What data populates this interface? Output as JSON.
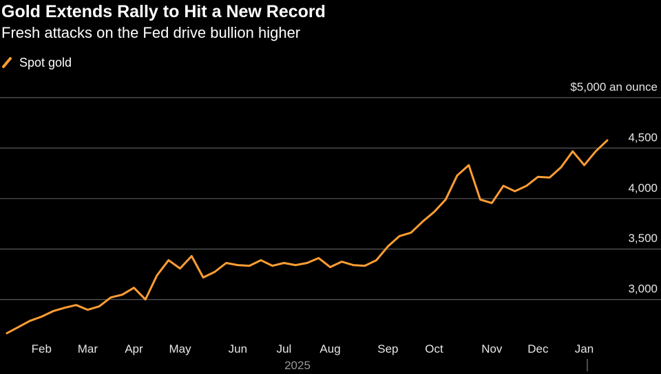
{
  "chart_data": {
    "type": "line",
    "title": "Gold Extends Rally to Hit a New Record",
    "subtitle": "Fresh attacks on the Fed drive bullion higher",
    "year_label": "2025",
    "categories": [
      null,
      null,
      null,
      "Feb",
      null,
      null,
      null,
      "Mar",
      null,
      null,
      null,
      "Apr",
      null,
      null,
      null,
      "May",
      null,
      null,
      null,
      null,
      "Jun",
      null,
      null,
      null,
      "Jul",
      null,
      null,
      null,
      "Aug",
      null,
      null,
      null,
      null,
      "Sep",
      null,
      null,
      null,
      "Oct",
      null,
      null,
      null,
      null,
      "Nov",
      null,
      null,
      null,
      "Dec",
      null,
      null,
      null,
      "Jan",
      null,
      null
    ],
    "series": [
      {
        "name": "Spot gold",
        "color": "#ff9e33",
        "values": [
          2666,
          2727,
          2788,
          2830,
          2884,
          2918,
          2945,
          2898,
          2932,
          3020,
          3048,
          3116,
          3000,
          3239,
          3389,
          3307,
          3430,
          3218,
          3273,
          3362,
          3341,
          3334,
          3389,
          3334,
          3362,
          3341,
          3362,
          3410,
          3321,
          3375,
          3341,
          3334,
          3389,
          3526,
          3628,
          3662,
          3771,
          3867,
          3990,
          4229,
          4331,
          3990,
          3956,
          4126,
          4072,
          4126,
          4215,
          4208,
          4311,
          4468,
          4331,
          4468,
          4577
        ]
      }
    ],
    "ylim": [
      2650,
      5000
    ],
    "yticks": [
      {
        "value": 3000,
        "label": "3,000"
      },
      {
        "value": 3500,
        "label": "3,500"
      },
      {
        "value": 4000,
        "label": "4,000"
      },
      {
        "value": 4500,
        "label": "4,500"
      },
      {
        "value": 5000,
        "label": "$5,000 an ounce"
      }
    ],
    "grid": true
  }
}
